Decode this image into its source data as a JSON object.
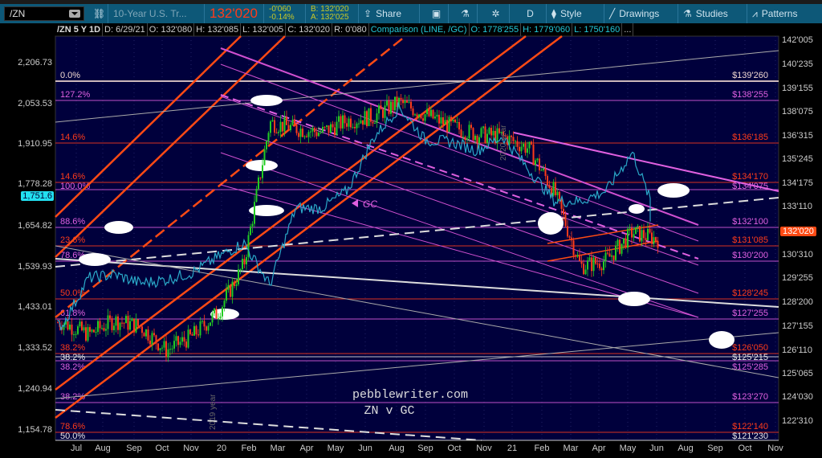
{
  "toolbar": {
    "symbol": "/ZN",
    "description": "10-Year U.S. Tr...",
    "last_price": "132'020",
    "change": "-0'060",
    "change_pct": "-0.14%",
    "bid": "B: 132'020",
    "ask": "A: 132'025",
    "share": "Share",
    "aggregation": "D",
    "style": "Style",
    "drawings": "Drawings",
    "studies": "Studies",
    "patterns": "Patterns",
    "price_color": "#ff3b1a",
    "change_color": "#c8c828"
  },
  "infobar": {
    "symbol_period": "/ZN 5 Y 1D",
    "date": "D: 6/29/21",
    "open": "O: 132'080",
    "high": "H: 132'085",
    "low": "L: 132'005",
    "close": "C: 132'020",
    "range": "R: 0'080",
    "comparison": "Comparison (LINE, /GC)",
    "c_open": "O: 1778'255",
    "c_high": "H: 1779'060",
    "c_low": "L: 1750'160",
    "more": "..."
  },
  "chart_data": {
    "type": "line",
    "background": "#00003c",
    "x_ticks": [
      "Jul",
      "Aug",
      "Sep",
      "Oct",
      "Nov",
      "20",
      "Feb",
      "Mar",
      "Apr",
      "May",
      "Jun",
      "Aug",
      "Sep",
      "Oct",
      "Nov",
      "21",
      "Feb",
      "Mar",
      "Apr",
      "May",
      "Jun",
      "Aug",
      "Sep",
      "Oct",
      "Nov"
    ],
    "right_axis_ticks": [
      "142'005",
      "140'235",
      "139'155",
      "138'075",
      "136'315",
      "135'245",
      "134'175",
      "133'110",
      "130'310",
      "129'255",
      "128'200",
      "127'155",
      "126'110",
      "125'065",
      "124'030",
      "122'310"
    ],
    "right_axis_current": "132'020",
    "left_axis_ticks": [
      "2,206.73",
      "2,053.53",
      "1,910.95",
      "1,778.28",
      "1,654.82",
      "1,539.93",
      "1,433.01",
      "1,333.52",
      "1,240.94",
      "1,154.78"
    ],
    "left_axis_current": "1,751.6",
    "right_range": [
      121.5,
      142.5
    ],
    "left_range": [
      1130,
      2240
    ],
    "series": [
      {
        "name": "/ZN",
        "style": "candles",
        "axis": "right",
        "dates": [
          "2019-07",
          "2019-08",
          "2019-09",
          "2019-10",
          "2019-11",
          "2019-12",
          "2020-01",
          "2020-02",
          "2020-03",
          "2020-04",
          "2020-05",
          "2020-06",
          "2020-07",
          "2020-08",
          "2020-09",
          "2020-10",
          "2020-11",
          "2020-12",
          "2021-01",
          "2021-02",
          "2021-03",
          "2021-04",
          "2021-05",
          "2021-06"
        ],
        "values": [
          127.9,
          127.3,
          128.0,
          127.7,
          126.5,
          127.2,
          128.4,
          130.8,
          137.9,
          137.6,
          137.4,
          138.0,
          138.2,
          138.9,
          138.3,
          137.7,
          137.3,
          137.2,
          136.6,
          134.4,
          130.7,
          131.0,
          132.4,
          132.06
        ],
        "up_color": "#22cc22",
        "down_color": "#ff3b1a"
      },
      {
        "name": "/GC",
        "style": "line",
        "axis": "left",
        "color": "#2aa8c8",
        "dates": [
          "2019-07",
          "2019-08",
          "2019-09",
          "2019-10",
          "2019-11",
          "2019-12",
          "2020-01",
          "2020-02",
          "2020-03",
          "2020-04",
          "2020-05",
          "2020-06",
          "2020-07",
          "2020-08",
          "2020-09",
          "2020-10",
          "2020-11",
          "2020-12",
          "2021-01",
          "2021-02",
          "2021-03",
          "2021-04",
          "2021-05",
          "2021-06"
        ],
        "values": [
          1455,
          1590,
          1600,
          1575,
          1585,
          1605,
          1650,
          1690,
          1570,
          1790,
          1790,
          1840,
          1990,
          2080,
          1985,
          1980,
          1955,
          1995,
          1900,
          1810,
          1810,
          1840,
          1950,
          1751.6
        ]
      }
    ],
    "fib_levels": [
      {
        "pct": "0.0%",
        "price": "$139'260",
        "color": "#f0d8d0"
      },
      {
        "pct": "127.2%",
        "price": "$138'255",
        "color": "#e060e0"
      },
      {
        "pct": "14.6%",
        "price": "$136'185",
        "color": "#ff3b1a"
      },
      {
        "pct": "14.6%",
        "price": "$134'170",
        "color": "#ff3b1a"
      },
      {
        "pct": "100.0%",
        "price": "$134'075",
        "color": "#e060e0"
      },
      {
        "pct": "88.6%",
        "price": "$132'100",
        "color": "#e060e0"
      },
      {
        "pct": "23.6%",
        "price": "$131'085",
        "color": "#ff3b1a"
      },
      {
        "pct": "78.6%",
        "price": "$130'200",
        "color": "#e060e0"
      },
      {
        "pct": "50.0%",
        "price": "$128'245",
        "color": "#ff3b1a"
      },
      {
        "pct": "61.8%",
        "price": "$127'255",
        "color": "#e060e0"
      },
      {
        "pct": "38.2%",
        "price": "$126'050",
        "color": "#ff3b1a"
      },
      {
        "pct": "38.2%",
        "price": "$125'215",
        "color": "#e8e8e8"
      },
      {
        "pct": "38.2%",
        "price": "$125'285",
        "color": "#e060e0"
      },
      {
        "pct": "38.2%",
        "price": "$123'270",
        "color": "#e060e0"
      },
      {
        "pct": "78.6%",
        "price": "$122'140",
        "color": "#ff3b1a"
      },
      {
        "pct": "50.0%",
        "price": "$121'230",
        "color": "#e8e8e8"
      }
    ],
    "annotations": {
      "watermark": "pebblewriter.com",
      "subtitle": "ZN v GC",
      "gc_label": "GC",
      "year_2019": "2019 year",
      "year_2020": "2020 year"
    }
  }
}
